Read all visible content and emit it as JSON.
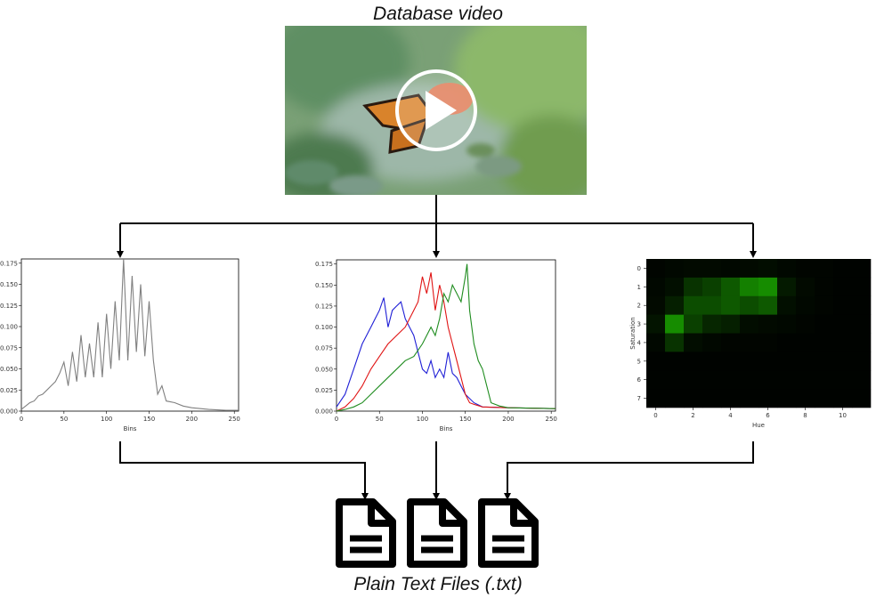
{
  "header": {
    "title": "Database video"
  },
  "video": {
    "play_icon": "play-circle-icon",
    "colors": {
      "bg": "#7fa57a",
      "leaf": "#9fb8a6",
      "wing": "#d9832b",
      "flower": "#e8734e"
    }
  },
  "footer": {
    "caption": "Plain Text Files (.txt)",
    "file_icon": "document-icon",
    "file_count": 3
  },
  "chart_data": [
    {
      "type": "line",
      "title": "",
      "xlabel": "Bins",
      "ylabel": "",
      "xlim": [
        0,
        255
      ],
      "ylim": [
        0,
        0.18
      ],
      "xticks": [
        "0",
        "50",
        "100",
        "150",
        "200",
        "250"
      ],
      "yticks": [
        "0.000",
        "0.025",
        "0.050",
        "0.075",
        "0.100",
        "0.125",
        "0.150",
        "0.175"
      ],
      "series": [
        {
          "color": "#808080",
          "x": [
            0,
            10,
            15,
            20,
            25,
            30,
            35,
            40,
            45,
            50,
            55,
            60,
            65,
            70,
            75,
            80,
            85,
            90,
            95,
            100,
            105,
            110,
            115,
            120,
            125,
            130,
            135,
            140,
            145,
            150,
            155,
            160,
            165,
            170,
            180,
            190,
            200,
            220,
            240,
            255
          ],
          "y": [
            0.002,
            0.01,
            0.012,
            0.018,
            0.02,
            0.025,
            0.03,
            0.035,
            0.045,
            0.058,
            0.03,
            0.07,
            0.035,
            0.09,
            0.04,
            0.08,
            0.04,
            0.105,
            0.04,
            0.115,
            0.05,
            0.13,
            0.06,
            0.18,
            0.06,
            0.16,
            0.07,
            0.15,
            0.065,
            0.13,
            0.06,
            0.02,
            0.03,
            0.012,
            0.01,
            0.006,
            0.004,
            0.002,
            0.001,
            0.001
          ]
        }
      ]
    },
    {
      "type": "line",
      "title": "",
      "xlabel": "Bins",
      "ylabel": "",
      "xlim": [
        0,
        255
      ],
      "ylim": [
        0,
        0.18
      ],
      "xticks": [
        "0",
        "50",
        "100",
        "150",
        "200",
        "250"
      ],
      "yticks": [
        "0.000",
        "0.025",
        "0.050",
        "0.075",
        "0.100",
        "0.125",
        "0.150",
        "0.175"
      ],
      "series": [
        {
          "color": "#1f1fd6",
          "x": [
            0,
            10,
            20,
            30,
            40,
            45,
            50,
            55,
            60,
            65,
            70,
            75,
            80,
            85,
            90,
            95,
            100,
            105,
            110,
            115,
            120,
            125,
            130,
            135,
            140,
            145,
            150,
            160,
            170,
            200,
            255
          ],
          "y": [
            0.005,
            0.02,
            0.05,
            0.08,
            0.1,
            0.11,
            0.12,
            0.135,
            0.1,
            0.12,
            0.125,
            0.13,
            0.11,
            0.1,
            0.09,
            0.07,
            0.05,
            0.045,
            0.06,
            0.04,
            0.05,
            0.04,
            0.07,
            0.045,
            0.04,
            0.03,
            0.02,
            0.01,
            0.005,
            0.004,
            0.003
          ]
        },
        {
          "color": "#e01414",
          "x": [
            0,
            10,
            20,
            30,
            40,
            50,
            60,
            70,
            80,
            90,
            95,
            100,
            105,
            110,
            115,
            120,
            125,
            130,
            135,
            140,
            145,
            150,
            155,
            160,
            170,
            200,
            255
          ],
          "y": [
            0.0,
            0.005,
            0.015,
            0.03,
            0.05,
            0.065,
            0.08,
            0.09,
            0.1,
            0.12,
            0.13,
            0.16,
            0.14,
            0.165,
            0.12,
            0.15,
            0.13,
            0.1,
            0.08,
            0.06,
            0.04,
            0.02,
            0.01,
            0.008,
            0.005,
            0.004,
            0.003
          ]
        },
        {
          "color": "#1f8c1f",
          "x": [
            0,
            10,
            20,
            30,
            40,
            50,
            60,
            70,
            80,
            90,
            100,
            110,
            115,
            120,
            125,
            130,
            135,
            140,
            145,
            150,
            152,
            155,
            160,
            165,
            170,
            175,
            180,
            190,
            200,
            255
          ],
          "y": [
            0.0,
            0.002,
            0.005,
            0.01,
            0.02,
            0.03,
            0.04,
            0.05,
            0.06,
            0.065,
            0.08,
            0.1,
            0.09,
            0.11,
            0.14,
            0.13,
            0.15,
            0.14,
            0.13,
            0.16,
            0.175,
            0.12,
            0.08,
            0.06,
            0.05,
            0.03,
            0.01,
            0.006,
            0.004,
            0.003
          ]
        }
      ]
    },
    {
      "type": "heatmap",
      "title": "",
      "xlabel": "Hue",
      "ylabel": "Saturation",
      "xticks": [
        "0",
        "2",
        "4",
        "6",
        "8",
        "10"
      ],
      "yticks": [
        "0",
        "1",
        "2",
        "3",
        "4",
        "5",
        "6",
        "7"
      ],
      "rows": 8,
      "cols": 12,
      "values": [
        [
          0.02,
          0.03,
          0.04,
          0.04,
          0.03,
          0.04,
          0.05,
          0.03,
          0.02,
          0.02,
          0.01,
          0.01
        ],
        [
          0.03,
          0.06,
          0.2,
          0.25,
          0.35,
          0.5,
          0.55,
          0.1,
          0.04,
          0.02,
          0.01,
          0.01
        ],
        [
          0.04,
          0.12,
          0.3,
          0.3,
          0.35,
          0.3,
          0.35,
          0.06,
          0.03,
          0.02,
          0.01,
          0.01
        ],
        [
          0.08,
          0.55,
          0.25,
          0.15,
          0.12,
          0.05,
          0.04,
          0.03,
          0.02,
          0.01,
          0.01,
          0.01
        ],
        [
          0.03,
          0.2,
          0.05,
          0.03,
          0.02,
          0.02,
          0.02,
          0.01,
          0.01,
          0.01,
          0.01,
          0.01
        ],
        [
          0.01,
          0.01,
          0.01,
          0.01,
          0.01,
          0.01,
          0.01,
          0.01,
          0.01,
          0.01,
          0.01,
          0.01
        ],
        [
          0.01,
          0.01,
          0.01,
          0.01,
          0.01,
          0.01,
          0.01,
          0.01,
          0.01,
          0.01,
          0.01,
          0.01
        ],
        [
          0.01,
          0.01,
          0.01,
          0.01,
          0.01,
          0.01,
          0.01,
          0.01,
          0.01,
          0.01,
          0.01,
          0.01
        ]
      ]
    }
  ]
}
